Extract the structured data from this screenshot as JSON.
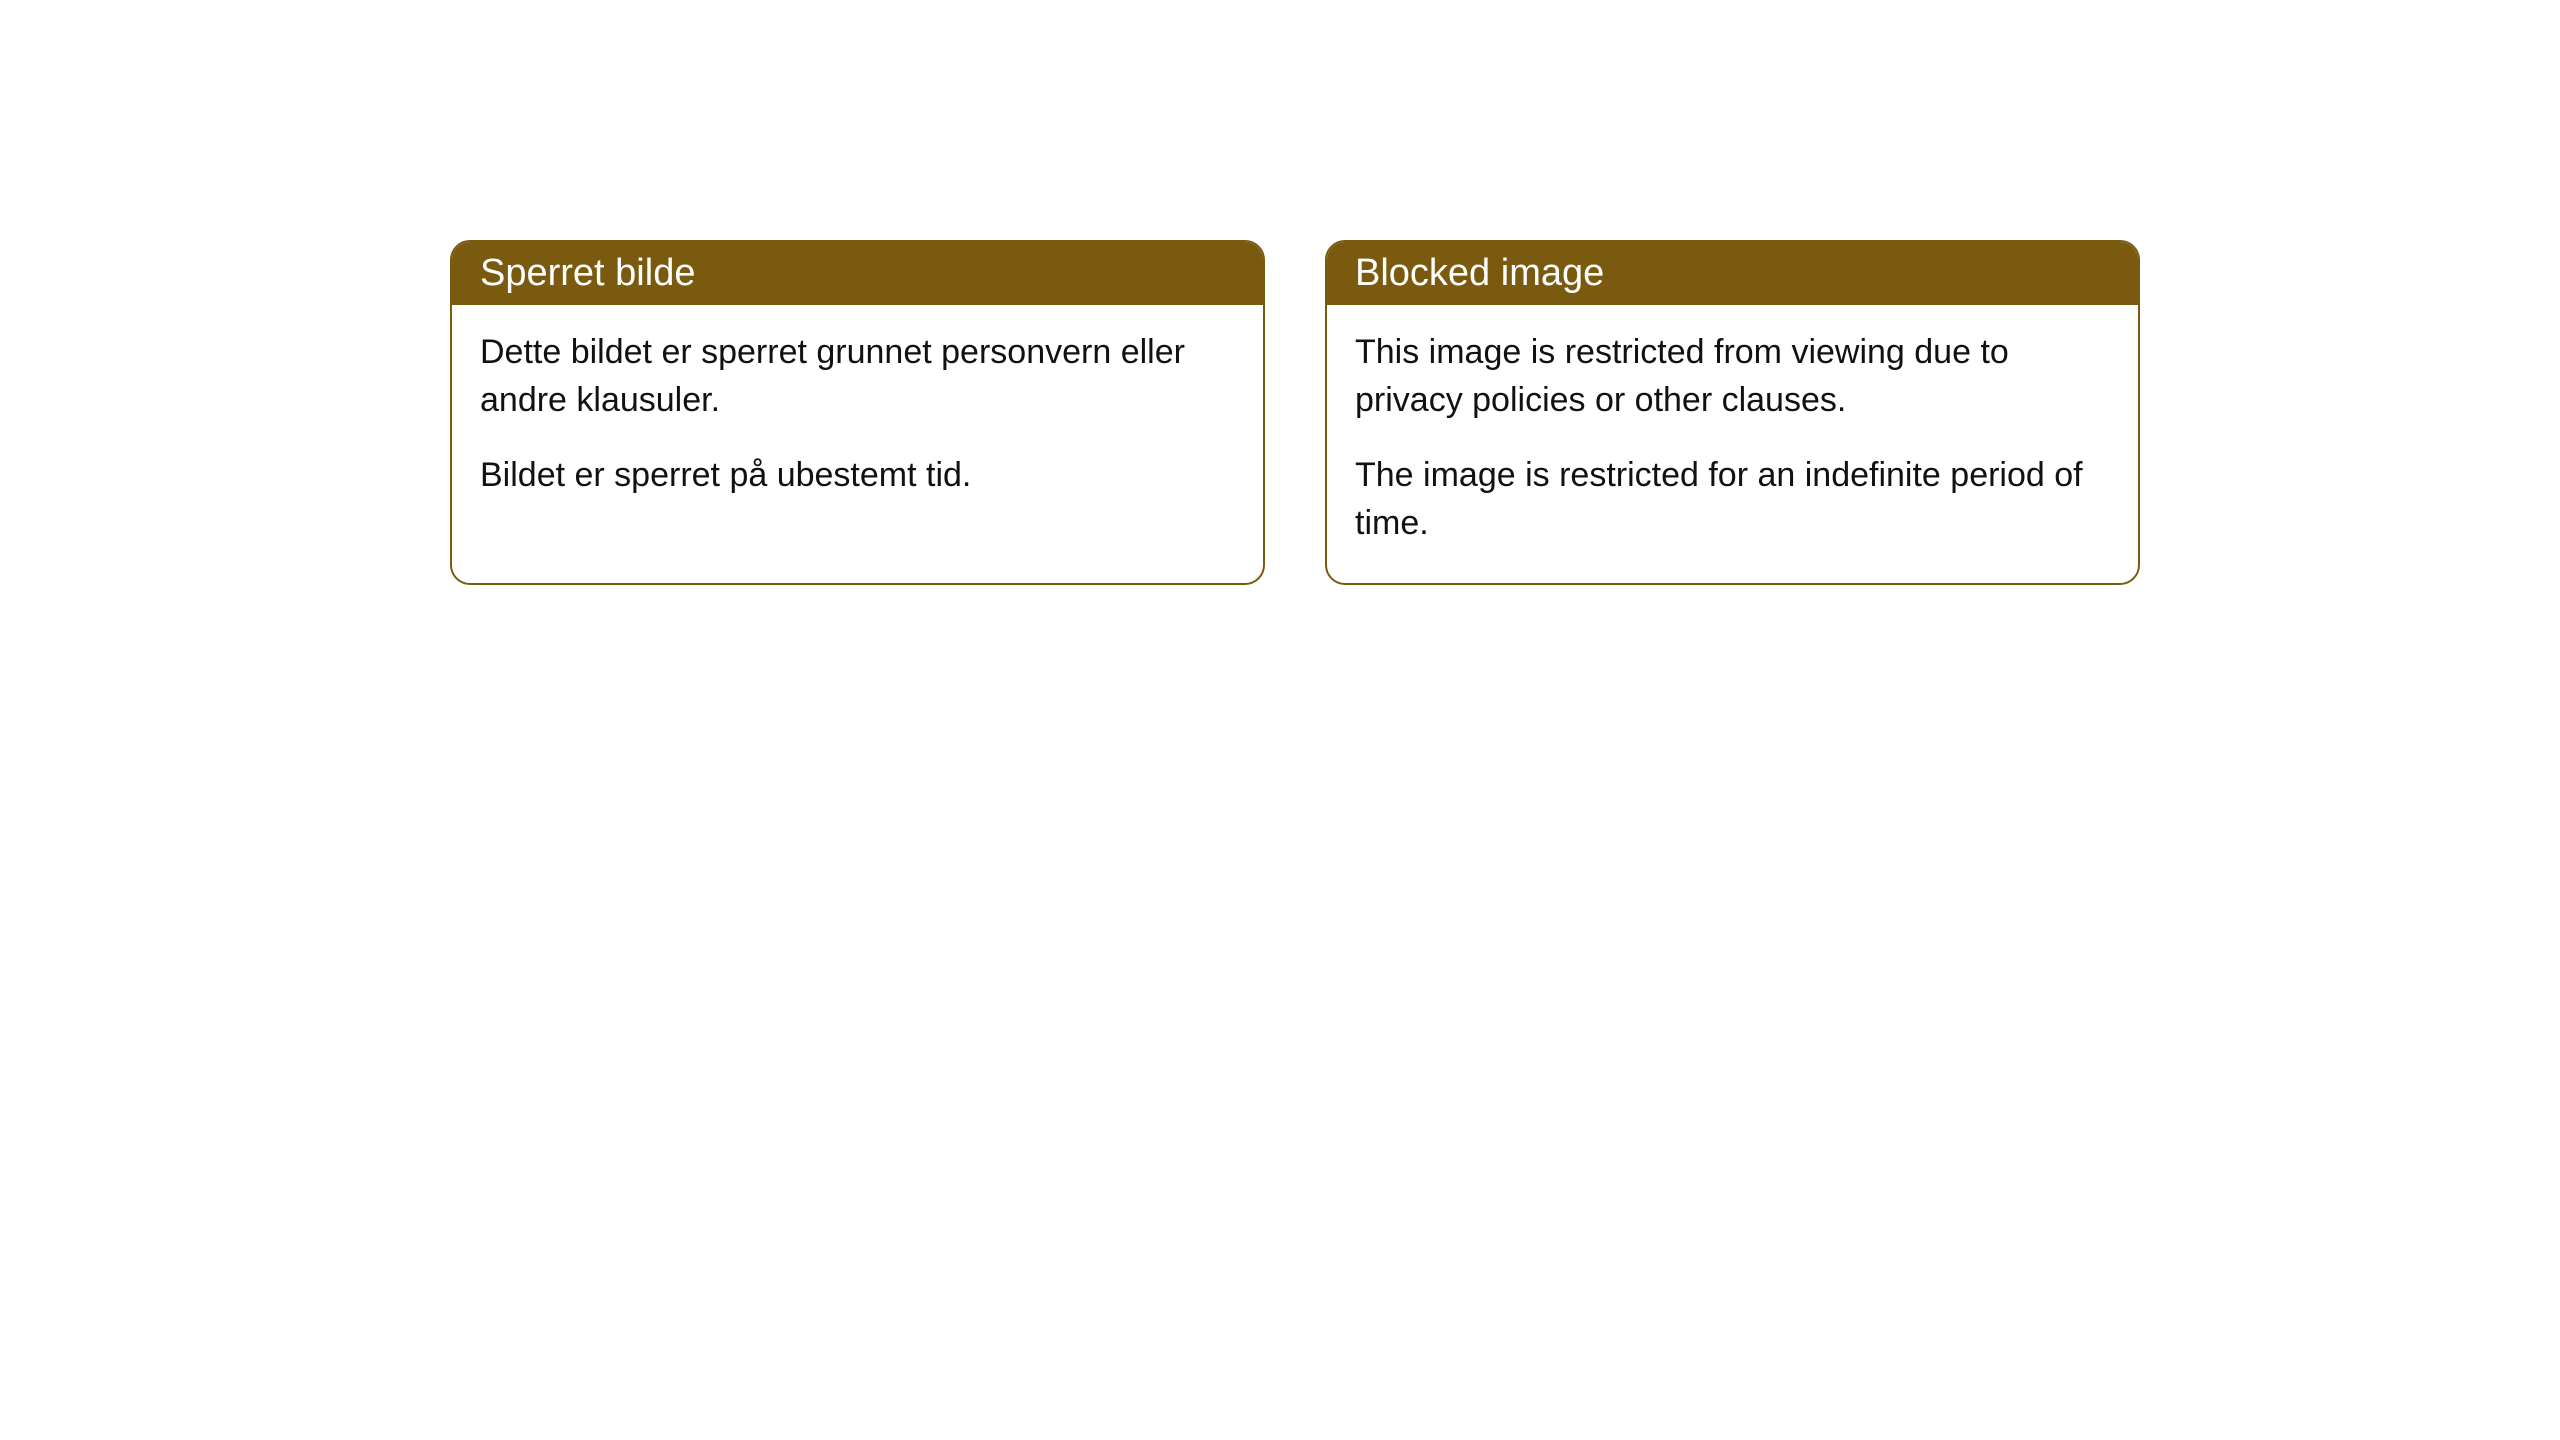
{
  "styling": {
    "header_bg_color": "#7a5a0f",
    "header_text_color": "#ffffff",
    "body_text_color": "#111111",
    "border_color": "#7a5a0f",
    "card_bg_color": "#ffffff",
    "page_bg_color": "#ffffff",
    "header_fontsize": 38,
    "body_fontsize": 34,
    "border_radius": 20,
    "border_width": 2
  },
  "cards": [
    {
      "title": "Sperret bilde",
      "paragraphs": [
        "Dette bildet er sperret grunnet personvern eller andre klausuler.",
        "Bildet er sperret på ubestemt tid."
      ]
    },
    {
      "title": "Blocked image",
      "paragraphs": [
        "This image is restricted from viewing due to privacy policies or other clauses.",
        "The image is restricted for an indefinite period of time."
      ]
    }
  ]
}
